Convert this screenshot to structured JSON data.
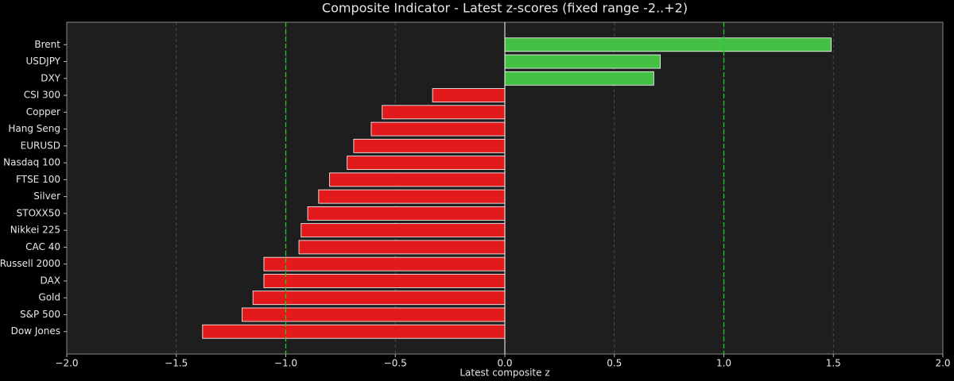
{
  "chart_data": {
    "type": "barh",
    "title": "Composite Indicator - Latest z-scores (fixed range -2..+2)",
    "x_label": "Latest composite z",
    "categories": [
      "Brent",
      "USDJPY",
      "DXY",
      "CSI 300",
      "Copper",
      "Hang Seng",
      "EURUSD",
      "Nasdaq 100",
      "FTSE 100",
      "Silver",
      "STOXX50",
      "Nikkei 225",
      "CAC 40",
      "Russell 2000",
      "DAX",
      "Gold",
      "S&P 500",
      "Dow Jones"
    ],
    "values": [
      1.49,
      0.71,
      0.68,
      -0.33,
      -0.56,
      -0.61,
      -0.69,
      -0.72,
      -0.8,
      -0.85,
      -0.9,
      -0.93,
      -0.94,
      -1.1,
      -1.1,
      -1.15,
      -1.2,
      -1.38
    ],
    "positive_color": "#44c044",
    "negative_color": "#e31a1c",
    "xlim": [
      -2,
      2
    ],
    "xticks": [
      {
        "value": -2,
        "label": "−2.0"
      },
      {
        "value": -1.5,
        "label": "−1.5"
      },
      {
        "value": -1,
        "label": "−1.0"
      },
      {
        "value": -0.5,
        "label": "−0.5"
      },
      {
        "value": 0,
        "label": "0.0"
      },
      0.5,
      {
        "value": 1,
        "label": "1.0"
      },
      1.5,
      {
        "value": 2,
        "label": "2.0"
      }
    ],
    "reference_lines": [
      -1,
      1
    ],
    "reference_color": "#22cc22",
    "grid": true
  }
}
